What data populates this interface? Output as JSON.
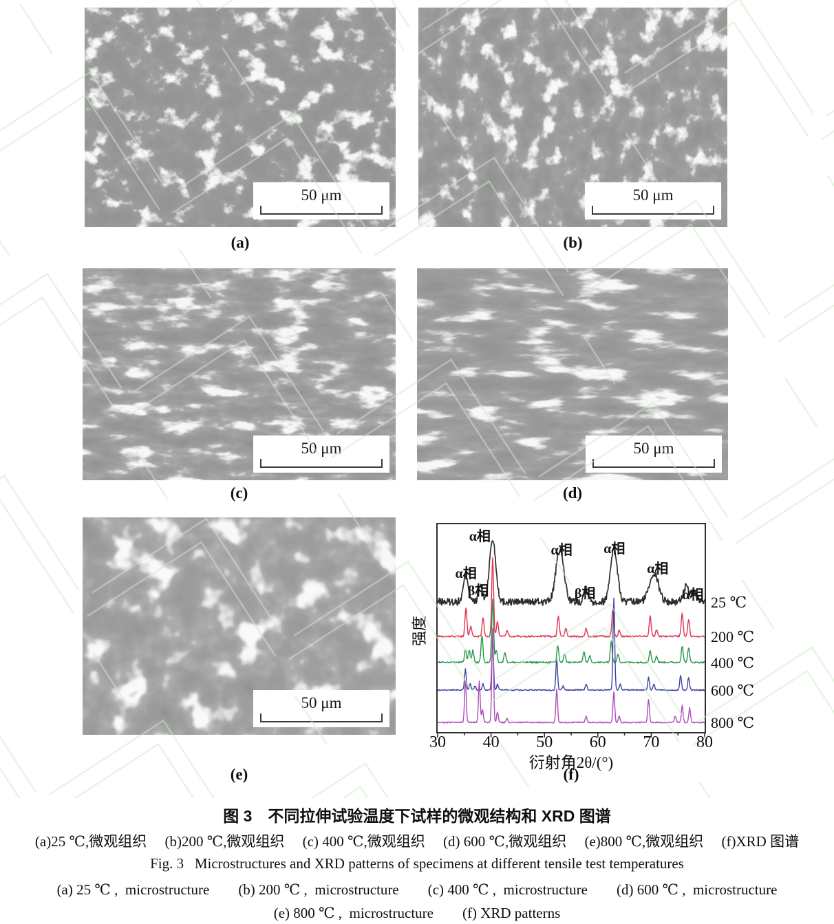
{
  "figure": {
    "caption_cn_title": "图 3　不同拉伸试验温度下试样的微观结构和 XRD 图谱",
    "caption_cn_sub": "(a)25 ℃,微观组织　 (b)200 ℃,微观组织　 (c) 400 ℃,微观组织　 (d) 600 ℃,微观组织　 (e)800 ℃,微观组织　 (f)XRD 图谱",
    "caption_en_title": "Fig. 3   Microstructures and XRD patterns of specimens at different tensile test temperatures",
    "caption_en_sub1": "(a) 25 ℃ ,  microstructure　　(b) 200 ℃ ,  microstructure　　(c) 400 ℃ ,  microstructure　　(d) 600 ℃ ,  microstructure",
    "caption_en_sub2": "(e) 800 ℃ ,  microstructure　　(f) XRD patterns"
  },
  "panels": {
    "a": {
      "label": "(a)",
      "scale_bar": "50 μm"
    },
    "b": {
      "label": "(b)",
      "scale_bar": "50 μm"
    },
    "c": {
      "label": "(c)",
      "scale_bar": "50 μm"
    },
    "d": {
      "label": "(d)",
      "scale_bar": "50 μm"
    },
    "e": {
      "label": "(e)",
      "scale_bar": "50 μm"
    },
    "f": {
      "label": "(f)"
    }
  },
  "chart_data": {
    "type": "line",
    "title": "",
    "xlabel": "衍射角2θ/(°)",
    "ylabel": "强度",
    "xlim": [
      30,
      80
    ],
    "xticks": [
      30,
      40,
      50,
      60,
      70,
      80
    ],
    "minor_tick_step": 5,
    "grid": false,
    "legend_position": "right",
    "series": [
      {
        "name": "25 ℃",
        "color": "#2d2d2d",
        "baseline": 0.375,
        "noise": 0.018,
        "peak_width": 0.45,
        "peaks": [
          [
            35.3,
            0.13,
            0.45
          ],
          [
            38.0,
            0.08,
            0.35
          ],
          [
            40.3,
            0.3,
            0.6
          ],
          [
            52.9,
            0.25,
            0.75
          ],
          [
            57.8,
            0.07,
            0.4
          ],
          [
            63.0,
            0.26,
            0.65
          ],
          [
            70.5,
            0.14,
            0.85
          ],
          [
            76.5,
            0.07,
            0.55
          ],
          [
            78.0,
            0.05,
            0.45
          ]
        ]
      },
      {
        "name": "200 ℃",
        "color": "#e03352",
        "baseline": 0.54,
        "noise": 0.004,
        "peak_width": 0.18,
        "peaks": [
          [
            35.3,
            0.14
          ],
          [
            36.2,
            0.05
          ],
          [
            38.5,
            0.09
          ],
          [
            40.3,
            0.38
          ],
          [
            41.2,
            0.07
          ],
          [
            43.0,
            0.03
          ],
          [
            52.6,
            0.1
          ],
          [
            54.0,
            0.04
          ],
          [
            57.8,
            0.04
          ],
          [
            62.8,
            0.13
          ],
          [
            64.0,
            0.03
          ],
          [
            69.8,
            0.1
          ],
          [
            71.0,
            0.03
          ],
          [
            75.8,
            0.11
          ],
          [
            77.0,
            0.08
          ]
        ]
      },
      {
        "name": "400 ℃",
        "color": "#27964a",
        "baseline": 0.665,
        "noise": 0.004,
        "peak_width": 0.18,
        "peaks": [
          [
            35.2,
            0.06
          ],
          [
            35.9,
            0.06
          ],
          [
            36.6,
            0.06
          ],
          [
            38.3,
            0.13
          ],
          [
            40.3,
            0.3
          ],
          [
            41.0,
            0.06
          ],
          [
            42.6,
            0.05
          ],
          [
            52.5,
            0.08
          ],
          [
            53.8,
            0.04
          ],
          [
            57.4,
            0.05
          ],
          [
            58.5,
            0.03
          ],
          [
            62.5,
            0.1
          ],
          [
            63.8,
            0.04
          ],
          [
            69.8,
            0.06
          ],
          [
            71.0,
            0.03
          ],
          [
            75.8,
            0.08
          ],
          [
            77.0,
            0.07
          ]
        ]
      },
      {
        "name": "600 ℃",
        "color": "#3d42a0",
        "baseline": 0.798,
        "noise": 0.003,
        "peak_width": 0.16,
        "peaks": [
          [
            35.2,
            0.1
          ],
          [
            36.1,
            0.03
          ],
          [
            37.0,
            0.02
          ],
          [
            38.5,
            0.03
          ],
          [
            40.3,
            0.23
          ],
          [
            41.2,
            0.03
          ],
          [
            52.3,
            0.15
          ],
          [
            53.5,
            0.02
          ],
          [
            57.8,
            0.03
          ],
          [
            63.0,
            0.44
          ],
          [
            64.2,
            0.03
          ],
          [
            69.5,
            0.06
          ],
          [
            70.5,
            0.03
          ],
          [
            75.5,
            0.07
          ],
          [
            77.0,
            0.06
          ]
        ]
      },
      {
        "name": "800 ℃",
        "color": "#ad4bba",
        "baseline": 0.954,
        "noise": 0.003,
        "peak_width": 0.16,
        "peaks": [
          [
            35.2,
            0.2
          ],
          [
            37.8,
            0.2
          ],
          [
            38.4,
            0.06
          ],
          [
            40.3,
            0.45
          ],
          [
            41.2,
            0.05
          ],
          [
            43.0,
            0.02
          ],
          [
            52.3,
            0.16
          ],
          [
            57.8,
            0.03
          ],
          [
            63.0,
            0.15
          ],
          [
            64.0,
            0.03
          ],
          [
            69.5,
            0.11
          ],
          [
            74.5,
            0.03
          ],
          [
            75.8,
            0.08
          ],
          [
            77.2,
            0.07
          ]
        ]
      }
    ],
    "annotations": [
      {
        "label": "α相",
        "x": 35.3,
        "y": 0.222
      },
      {
        "label": "β相",
        "x": 37.6,
        "y": 0.305
      },
      {
        "label": "α相",
        "x": 37.9,
        "y": 0.043
      },
      {
        "label": "α相",
        "x": 53.2,
        "y": 0.109
      },
      {
        "label": "β相",
        "x": 57.6,
        "y": 0.318
      },
      {
        "label": "α相",
        "x": 63.1,
        "y": 0.103
      },
      {
        "label": "α相",
        "x": 71.2,
        "y": 0.199
      },
      {
        "label": "α相",
        "x": 77.8,
        "y": 0.325
      }
    ]
  }
}
